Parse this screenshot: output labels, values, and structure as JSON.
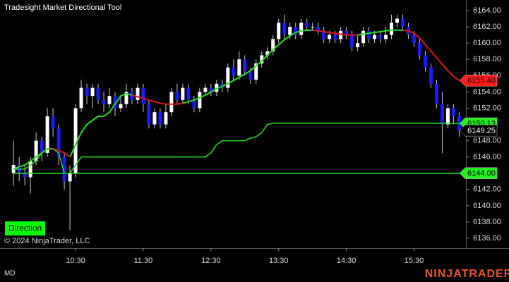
{
  "chart_data": {
    "type": "candlestick",
    "title": "Tradesight Market Directional Tool",
    "x": [
      575,
      580,
      585,
      590,
      595,
      600,
      605,
      610,
      615,
      620,
      625,
      630,
      635,
      640,
      645,
      650,
      655,
      660,
      665,
      670,
      675,
      680,
      685,
      690,
      695,
      700,
      705,
      710,
      715,
      720,
      725,
      730,
      735,
      740,
      745,
      750,
      755,
      760,
      765,
      770,
      775,
      780,
      785,
      790,
      795,
      800,
      805,
      810,
      815,
      820,
      825,
      830,
      835,
      840,
      845,
      850,
      855,
      860,
      865,
      870,
      875,
      880,
      885,
      890,
      895,
      900,
      905,
      910,
      915,
      920,
      925,
      930,
      935,
      940,
      945,
      950,
      955,
      960,
      965,
      970
    ],
    "open": [
      6144,
      6145,
      6144,
      6143.5,
      6145.5,
      6148,
      6146.5,
      6151,
      6149.5,
      6146,
      6143,
      6144,
      6152,
      6154.5,
      6153.5,
      6154.5,
      6153,
      6152.5,
      6153.5,
      6152,
      6152.5,
      6154,
      6153,
      6154.5,
      6152.5,
      6150,
      6151.5,
      6150,
      6151.5,
      6154,
      6153,
      6154.5,
      6153,
      6152,
      6154,
      6154.5,
      6154,
      6155,
      6154.5,
      6157,
      6156,
      6158,
      6156.5,
      6155.5,
      6157.5,
      6158.5,
      6159,
      6160.5,
      6162.5,
      6161,
      6162,
      6161,
      6162.5,
      6162,
      6162,
      6161.5,
      6160.5,
      6161,
      6160.5,
      6161.5,
      6161,
      6159.5,
      6160,
      6161.5,
      6160.5,
      6161,
      6160.5,
      6161,
      6162.5,
      6163,
      6162,
      6161,
      6160,
      6158.5,
      6157,
      6155,
      6152.5,
      6150,
      6152,
      6151
    ],
    "high": [
      6148,
      6146,
      6145,
      6146,
      6149,
      6148.5,
      6152,
      6152,
      6150,
      6146.5,
      6145,
      6152.5,
      6155.5,
      6155,
      6155,
      6155,
      6154,
      6154.5,
      6154,
      6153.5,
      6155,
      6154.5,
      6155,
      6155,
      6153,
      6152,
      6152,
      6152.5,
      6154.5,
      6155,
      6155,
      6155,
      6153.5,
      6154.5,
      6155,
      6155,
      6155.5,
      6155.5,
      6157.5,
      6158,
      6159,
      6158.5,
      6157,
      6158,
      6159,
      6159.5,
      6161,
      6163,
      6163.5,
      6162.5,
      6162.5,
      6163,
      6163,
      6162.5,
      6162.5,
      6162,
      6161.5,
      6161.5,
      6162,
      6162,
      6161.5,
      6161,
      6162,
      6162,
      6161.5,
      6161.5,
      6162,
      6163.5,
      6163.5,
      6163.5,
      6162.5,
      6161.5,
      6160.5,
      6159,
      6157.5,
      6155.5,
      6154,
      6152.5,
      6152.5,
      6151.5
    ],
    "low": [
      6142.5,
      6143,
      6142.5,
      6141.5,
      6145,
      6145.5,
      6146,
      6148.5,
      6145,
      6142,
      6137,
      6143.5,
      6151.5,
      6152.5,
      6152,
      6152.5,
      6151.5,
      6152,
      6151,
      6151.5,
      6152,
      6152.5,
      6152.5,
      6151.5,
      6149.5,
      6149.5,
      6149.5,
      6149.5,
      6151,
      6152.5,
      6152.5,
      6152.5,
      6151.5,
      6151.5,
      6153.5,
      6153.5,
      6153.5,
      6154,
      6154,
      6155.5,
      6155.5,
      6156,
      6155,
      6155,
      6157,
      6158,
      6158.5,
      6160,
      6160.5,
      6160.5,
      6160.5,
      6160.5,
      6161.5,
      6161.5,
      6161,
      6160,
      6160,
      6160,
      6160,
      6160.5,
      6159,
      6159,
      6159.5,
      6160,
      6160,
      6160,
      6160,
      6160.5,
      6162,
      6161.5,
      6160.5,
      6159.5,
      6158,
      6156.5,
      6154.5,
      6152,
      6146.5,
      6149.5,
      6150,
      6148.5
    ],
    "close": [
      6145,
      6144,
      6143.5,
      6145.5,
      6148,
      6146.5,
      6151,
      6149.5,
      6146,
      6143,
      6144,
      6152,
      6154.5,
      6153.5,
      6154.5,
      6153,
      6152.5,
      6153.5,
      6152,
      6152.5,
      6154,
      6153,
      6154.5,
      6152.5,
      6150,
      6151.5,
      6150,
      6151.5,
      6154,
      6153,
      6154.5,
      6153,
      6152,
      6154,
      6154.5,
      6154,
      6155,
      6154.5,
      6157,
      6156,
      6158,
      6156.5,
      6155.5,
      6157.5,
      6158.5,
      6159,
      6160.5,
      6162.5,
      6161,
      6162,
      6161,
      6162.5,
      6162,
      6162,
      6161.5,
      6160.5,
      6161,
      6160.5,
      6161.5,
      6161,
      6159.5,
      6160,
      6161.5,
      6160.5,
      6161,
      6160.5,
      6161,
      6162.5,
      6163,
      6162,
      6161,
      6160,
      6158.5,
      6157,
      6155,
      6152.5,
      6150,
      6152,
      6151,
      6149.25
    ],
    "up_color": "#ffffff",
    "down_color": "#1a1aff",
    "wick_color": "#c8c8c8",
    "series": [
      {
        "color": "#22dd22",
        "width": 2,
        "values": [
          6144.5,
          6144.8,
          6145,
          6145.5,
          6146,
          6146.5,
          6147,
          null,
          null,
          null,
          6146,
          6147.5,
          6149,
          6150,
          6150.5,
          6151,
          6151,
          6151.5,
          6152.5,
          6153.5,
          6153.8,
          6153.6,
          null,
          null,
          null,
          null,
          null,
          null,
          null,
          null,
          6152.6,
          6152.8,
          6153,
          6153.3,
          6153.6,
          6154,
          6154.4,
          6154.7,
          6155,
          6155.4,
          6155.8,
          6156.2,
          6156.6,
          6157.2,
          6157.8,
          6158.5,
          6159.2,
          6159.8,
          6160.4,
          6160.9,
          6161.3,
          6161.5,
          6161.6,
          6161.6,
          null,
          null,
          null,
          null,
          null,
          null,
          null,
          6161,
          6161.1,
          6161.2,
          6161.3,
          6161.4,
          6161.5,
          6161.6,
          6161.6,
          6161.6,
          null,
          null,
          null,
          null,
          null,
          null,
          null,
          null,
          null,
          null
        ]
      },
      {
        "color": "#e01010",
        "width": 2,
        "values": [
          null,
          null,
          null,
          null,
          null,
          null,
          6147,
          6147,
          6146.8,
          6146.5,
          6146,
          null,
          null,
          null,
          null,
          null,
          null,
          null,
          null,
          null,
          null,
          6153.6,
          6153.4,
          6153.2,
          6153,
          6152.8,
          6152.6,
          6152.5,
          6152.5,
          6152.5,
          6152.6,
          null,
          null,
          null,
          null,
          null,
          null,
          null,
          null,
          null,
          null,
          null,
          null,
          null,
          null,
          null,
          null,
          null,
          null,
          null,
          null,
          null,
          null,
          6161.6,
          6161.5,
          6161.4,
          6161.3,
          6161.2,
          6161.1,
          6161,
          6161,
          6161,
          null,
          null,
          null,
          null,
          null,
          null,
          null,
          6161.6,
          6161.5,
          6161.2,
          6160.6,
          6159.8,
          6159,
          6158.2,
          6157.4,
          6156.6,
          6155.9,
          6155.4
        ]
      },
      {
        "color": "#22dd22",
        "width": 1.5,
        "values": [
          6144.5,
          6144.5,
          6144.5,
          6145,
          6145.5,
          6146.5,
          6147,
          6147,
          6146.5,
          6144,
          6144,
          6145,
          6146,
          6146,
          6146,
          6146,
          6146,
          6146,
          6146,
          6146,
          6146,
          6146,
          6146,
          6146,
          6146,
          6146,
          6146,
          6146,
          6146,
          6146,
          6146,
          6146,
          6146,
          6146,
          6146,
          6146.5,
          6147.5,
          6148,
          6148,
          6148,
          6148,
          6148,
          6148.3,
          6148.5,
          6149,
          6150,
          6150.13,
          6150.13,
          6150.13,
          6150.13,
          6150.13,
          6150.13,
          6150.13,
          6150.13,
          6150.13,
          6150.13,
          6150.13,
          6150.13,
          6150.13,
          6150.13,
          6150.13,
          6150.13,
          6150.13,
          6150.13,
          6150.13,
          6150.13,
          6150.13,
          6150.13,
          6150.13,
          6150.13,
          6150.13,
          6150.13,
          6150.13,
          6150.13,
          6150.13,
          6150.13,
          6150.13,
          6150.13,
          6150.13,
          6150.13
        ]
      }
    ],
    "price_tags": [
      {
        "value": 6155.4,
        "label": "6155.40",
        "color": "#ff1a1a",
        "text_color": "#000000",
        "line": false
      },
      {
        "value": 6150.13,
        "label": "6150.13",
        "color": "#22ee22",
        "text_color": "#000000",
        "line": false
      },
      {
        "value": 6149.25,
        "label": "6149.25",
        "color": "#000000",
        "text_color": "#ffffff",
        "line": false
      },
      {
        "value": 6144,
        "label": "6144.00",
        "color": "#22ee22",
        "text_color": "#000000",
        "line": true
      }
    ],
    "xlim": [
      563,
      976
    ],
    "xticks": [
      {
        "value": 630,
        "label": "10:30"
      },
      {
        "value": 690,
        "label": "11:30"
      },
      {
        "value": 750,
        "label": "12:30"
      },
      {
        "value": 810,
        "label": "13:30"
      },
      {
        "value": 870,
        "label": "14:30"
      },
      {
        "value": 930,
        "label": "15:30"
      }
    ],
    "ylim": [
      6134.96,
      6165.3
    ],
    "yticks": [
      {
        "value": 6136,
        "label": "6136.00"
      },
      {
        "value": 6138,
        "label": "6138.00"
      },
      {
        "value": 6140,
        "label": "6140.00"
      },
      {
        "value": 6142,
        "label": "6142.00"
      },
      {
        "value": 6146,
        "label": "6146.00"
      },
      {
        "value": 6148,
        "label": "6148.00"
      },
      {
        "value": 6152,
        "label": "6152.00"
      },
      {
        "value": 6154,
        "label": "6154.00"
      },
      {
        "value": 6156,
        "label": "6156.00"
      },
      {
        "value": 6158,
        "label": "6158.00"
      },
      {
        "value": 6160,
        "label": "6160.00"
      },
      {
        "value": 6162,
        "label": "6162.00"
      },
      {
        "value": 6164,
        "label": "6164.00"
      }
    ],
    "grid": false
  },
  "button": "Direction",
  "copyright": "© 2024 NinjaTrader, LLC",
  "instrument": "MD",
  "brand": "NINJATRADER"
}
